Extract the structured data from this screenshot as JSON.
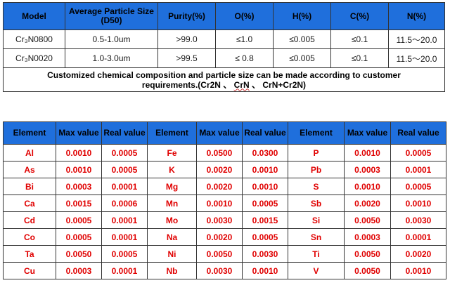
{
  "spec_table": {
    "headers": [
      "Model",
      "Average Particle Size (D50)",
      "Purity(%)",
      "O(%)",
      "H(%)",
      "C(%)",
      "N(%)"
    ],
    "rows": [
      [
        "Cr₃N0800",
        "0.5-1.0um",
        ">99.0",
        "≤1.0",
        "≤0.005",
        "≤0.1",
        "11.5～20.0"
      ],
      [
        "Cr₃N0020",
        "1.0-3.0um",
        ">99.5",
        "≤ 0.8",
        "≤0.005",
        "≤0.1",
        "11.5～20.0"
      ]
    ],
    "note_line1": "Customized chemical composition and particle size can be made according to customer",
    "note_line2_pre": "requirements.(Cr2N ",
    "note_sep": "、",
    "note_crn": "CrN",
    "note_line2_post": "CrN+Cr2N)"
  },
  "impurity_table": {
    "headers": [
      "Element",
      "Max value",
      "Real value",
      "Element",
      "Max value",
      "Real value",
      "Element",
      "Max value",
      "Real value"
    ],
    "rows": [
      [
        "Al",
        "0.0010",
        "0.0005",
        "Fe",
        "0.0500",
        "0.0300",
        "P",
        "0.0010",
        "0.0005"
      ],
      [
        "As",
        "0.0010",
        "0.0005",
        "K",
        "0.0020",
        "0.0010",
        "Pb",
        "0.0003",
        "0.0001"
      ],
      [
        "Bi",
        "0.0003",
        "0.0001",
        "Mg",
        "0.0020",
        "0.0010",
        "S",
        "0.0010",
        "0.0005"
      ],
      [
        "Ca",
        "0.0015",
        "0.0006",
        "Mn",
        "0.0010",
        "0.0005",
        "Sb",
        "0.0020",
        "0.0010"
      ],
      [
        "Cd",
        "0.0005",
        "0.0001",
        "Mo",
        "0.0030",
        "0.0015",
        "Si",
        "0.0050",
        "0.0030"
      ],
      [
        "Co",
        "0.0005",
        "0.0001",
        "Na",
        "0.0020",
        "0.0005",
        "Sn",
        "0.0003",
        "0.0001"
      ],
      [
        "Ta",
        "0.0050",
        "0.0005",
        "Ni",
        "0.0050",
        "0.0030",
        "Ti",
        "0.0050",
        "0.0020"
      ],
      [
        "Cu",
        "0.0003",
        "0.0001",
        "Nb",
        "0.0030",
        "0.0010",
        "V",
        "0.0050",
        "0.0010"
      ]
    ]
  },
  "colors": {
    "header_bg": "#1f6fdc",
    "impurity_value_text": "#e00000"
  }
}
